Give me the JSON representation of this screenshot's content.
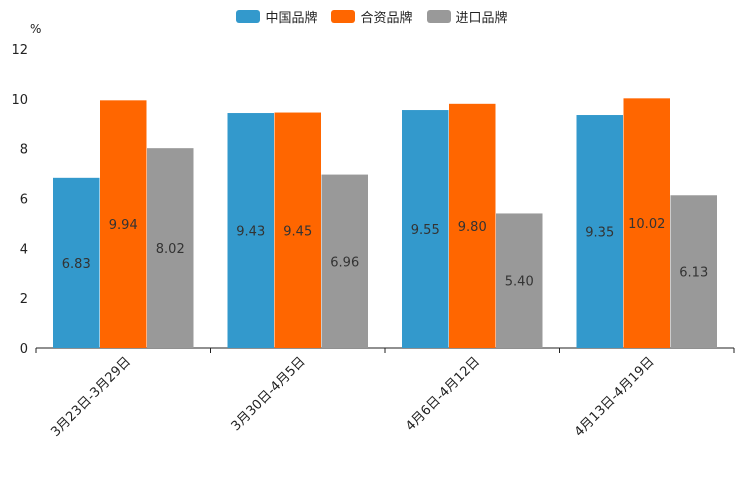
{
  "chart_data": {
    "type": "bar",
    "unit": "%",
    "categories": [
      "3月23日-3月29日",
      "3月30日-4月5日",
      "4月6日-4月12日",
      "4月13日-4月19日"
    ],
    "series": [
      {
        "name": "中国品牌",
        "color": "#3399cc",
        "values": [
          6.83,
          9.43,
          9.55,
          9.35
        ],
        "labels": [
          "6.83",
          "9.43",
          "9.55",
          "9.35"
        ]
      },
      {
        "name": "合资品牌",
        "color": "#ff6600",
        "values": [
          9.94,
          9.45,
          9.8,
          10.02
        ],
        "labels": [
          "9.94",
          "9.45",
          "9.80",
          "10.02"
        ]
      },
      {
        "name": "进口品牌",
        "color": "#999999",
        "values": [
          8.02,
          6.96,
          5.4,
          6.13
        ],
        "labels": [
          "8.02",
          "6.96",
          "5.40",
          "6.13"
        ]
      }
    ],
    "ylim": [
      0,
      12
    ],
    "yticks": [
      "0",
      "2",
      "4",
      "6",
      "8",
      "10",
      "12"
    ],
    "legend_position": "top-center",
    "grid": false
  }
}
